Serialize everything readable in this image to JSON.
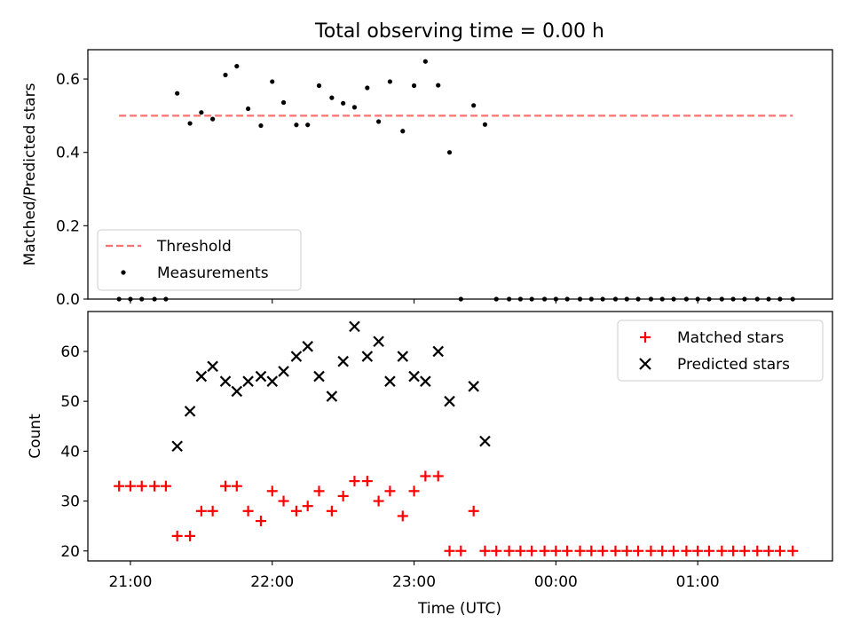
{
  "chart_data": {
    "title": "Total observing time = 0.00 h",
    "xlabel": "Time (UTC)",
    "x_unit": "hours",
    "x_ticks": [
      {
        "value": 21,
        "label": "21:00"
      },
      {
        "value": 22,
        "label": "22:00"
      },
      {
        "value": 23,
        "label": "23:00"
      },
      {
        "value": 24,
        "label": "00:00"
      },
      {
        "value": 25,
        "label": "01:00"
      }
    ],
    "xlim": [
      20.7,
      25.95
    ],
    "top": {
      "type": "scatter",
      "ylabel": "Matched/Predicted stars",
      "ylim": [
        0,
        0.68
      ],
      "y_ticks": [
        "0.0",
        "0.2",
        "0.4",
        "0.6"
      ],
      "y_tick_values": [
        0,
        0.2,
        0.4,
        0.6
      ],
      "legend_position": "lower-left",
      "threshold": {
        "name": "Threshold",
        "value": 0.5,
        "x_start": 20.92,
        "x_end": 25.67,
        "color": "#ff7070"
      },
      "measurements": {
        "name": "Measurements",
        "color": "#000000",
        "x": [
          20.92,
          21.0,
          21.08,
          21.17,
          21.25,
          21.33,
          21.42,
          21.5,
          21.58,
          21.67,
          21.75,
          21.83,
          21.92,
          22.0,
          22.08,
          22.17,
          22.25,
          22.33,
          22.42,
          22.5,
          22.58,
          22.67,
          22.75,
          22.83,
          22.92,
          23.0,
          23.08,
          23.17,
          23.25,
          23.33,
          23.42,
          23.5,
          23.58,
          23.67,
          23.75,
          23.83,
          23.92,
          24.0,
          24.08,
          24.17,
          24.25,
          24.33,
          24.42,
          24.5,
          24.58,
          24.67,
          24.75,
          24.83,
          24.92,
          25.0,
          25.08,
          25.17,
          25.25,
          25.33,
          25.42,
          25.5,
          25.58,
          25.67
        ],
        "y": [
          0,
          0,
          0,
          0,
          0,
          0.561,
          0.479,
          0.509,
          0.491,
          0.611,
          0.635,
          0.519,
          0.473,
          0.593,
          0.536,
          0.475,
          0.475,
          0.582,
          0.549,
          0.534,
          0.523,
          0.576,
          0.484,
          0.593,
          0.458,
          0.582,
          0.648,
          0.583,
          0.4,
          0,
          0.528,
          0.476,
          0,
          0,
          0,
          0,
          0,
          0,
          0,
          0,
          0,
          0,
          0,
          0,
          0,
          0,
          0,
          0,
          0,
          0,
          0,
          0,
          0,
          0,
          0,
          0,
          0,
          0
        ]
      }
    },
    "bottom": {
      "type": "scatter",
      "ylabel": "Count",
      "ylim": [
        18,
        68
      ],
      "y_ticks": [
        "20",
        "30",
        "40",
        "50",
        "60"
      ],
      "y_tick_values": [
        20,
        30,
        40,
        50,
        60
      ],
      "legend_position": "upper-right",
      "series": [
        {
          "name": "Matched stars",
          "marker": "+",
          "color": "#ff0000",
          "x": [
            20.92,
            21.0,
            21.08,
            21.17,
            21.25,
            21.33,
            21.42,
            21.5,
            21.58,
            21.67,
            21.75,
            21.83,
            21.92,
            22.0,
            22.08,
            22.17,
            22.25,
            22.33,
            22.42,
            22.5,
            22.58,
            22.67,
            22.75,
            22.83,
            22.92,
            23.0,
            23.08,
            23.17,
            23.25,
            23.33,
            23.42,
            23.5,
            23.58,
            23.67,
            23.75,
            23.83,
            23.92,
            24.0,
            24.08,
            24.17,
            24.25,
            24.33,
            24.42,
            24.5,
            24.58,
            24.67,
            24.75,
            24.83,
            24.92,
            25.0,
            25.08,
            25.17,
            25.25,
            25.33,
            25.42,
            25.5,
            25.58,
            25.67
          ],
          "y": [
            33,
            33,
            33,
            33,
            33,
            23,
            23,
            28,
            28,
            33,
            33,
            28,
            26,
            32,
            30,
            28,
            29,
            32,
            28,
            31,
            34,
            34,
            30,
            32,
            27,
            32,
            35,
            35,
            20,
            20,
            28,
            20,
            20,
            20,
            20,
            20,
            20,
            20,
            20,
            20,
            20,
            20,
            20,
            20,
            20,
            20,
            20,
            20,
            20,
            20,
            20,
            20,
            20,
            20,
            20,
            20,
            20,
            20
          ]
        },
        {
          "name": "Predicted stars",
          "marker": "x",
          "color": "#000000",
          "x": [
            21.33,
            21.42,
            21.5,
            21.58,
            21.67,
            21.75,
            21.83,
            21.92,
            22.0,
            22.08,
            22.17,
            22.25,
            22.33,
            22.42,
            22.5,
            22.58,
            22.67,
            22.75,
            22.83,
            22.92,
            23.0,
            23.08,
            23.17,
            23.25,
            23.42,
            23.5
          ],
          "y": [
            41,
            48,
            55,
            57,
            54,
            52,
            54,
            55,
            54,
            56,
            59,
            61,
            55,
            51,
            58,
            65,
            59,
            62,
            54,
            59,
            55,
            54,
            60,
            50,
            53,
            42
          ]
        }
      ]
    }
  }
}
